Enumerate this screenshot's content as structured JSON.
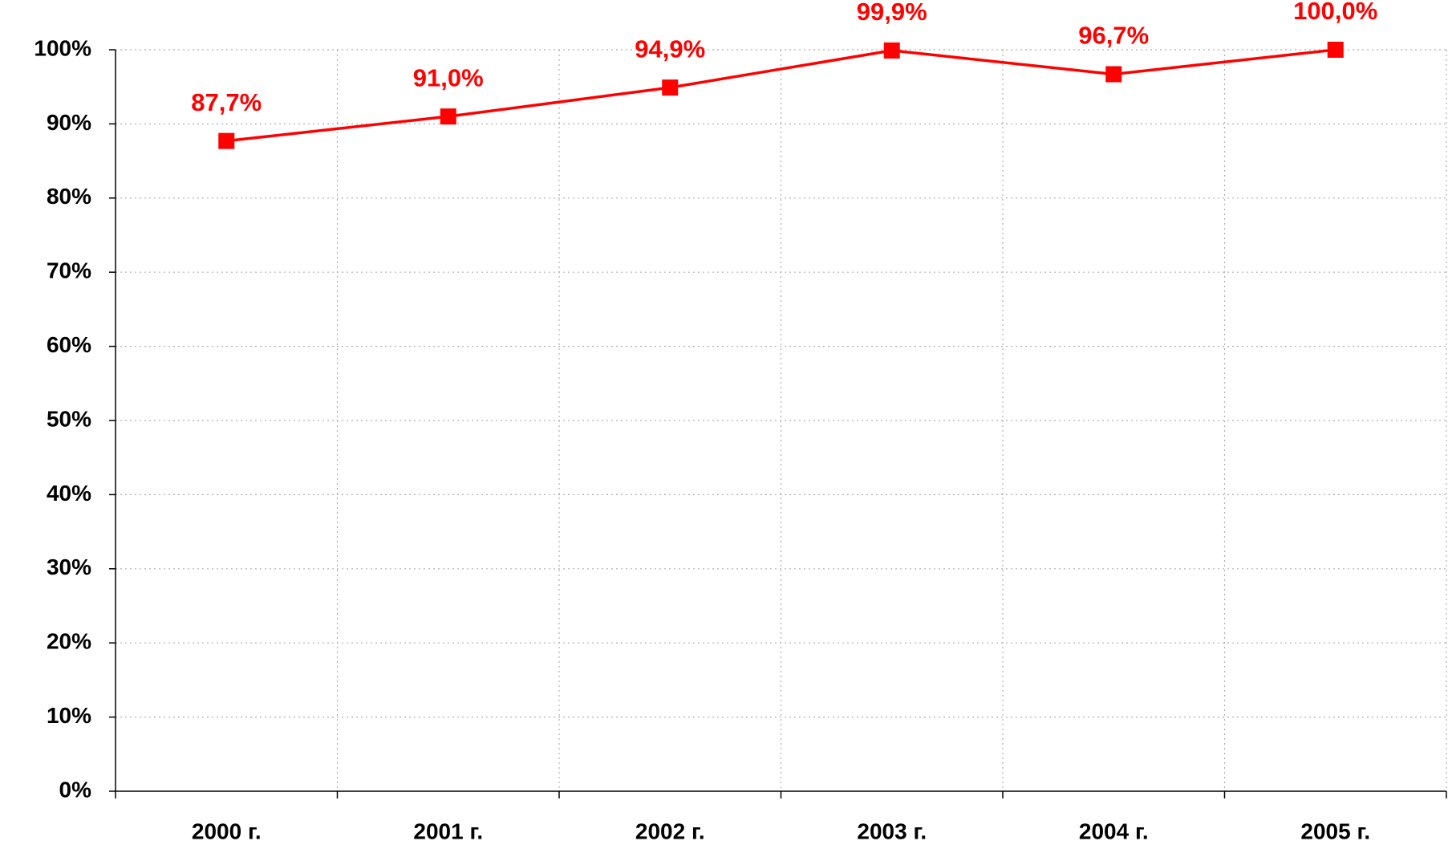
{
  "chart_data": {
    "type": "line",
    "categories": [
      "2000 г.",
      "2001 г.",
      "2002 г.",
      "2003 г.",
      "2004 г.",
      "2005 г."
    ],
    "series": [
      {
        "name": null,
        "color": "#ff0000",
        "values": [
          87.7,
          91.0,
          94.9,
          99.9,
          96.7,
          100.0
        ],
        "value_labels": [
          "87,7%",
          "91,0%",
          "94,9%",
          "99,9%",
          "96,7%",
          "100,0%"
        ]
      }
    ],
    "ylim": [
      0,
      100
    ],
    "yticks": [
      {
        "value": 0,
        "label": "0%"
      },
      {
        "value": 10,
        "label": "10%"
      },
      {
        "value": 20,
        "label": "20%"
      },
      {
        "value": 30,
        "label": "30%"
      },
      {
        "value": 40,
        "label": "40%"
      },
      {
        "value": 50,
        "label": "50%"
      },
      {
        "value": 60,
        "label": "60%"
      },
      {
        "value": 70,
        "label": "70%"
      },
      {
        "value": 80,
        "label": "80%"
      },
      {
        "value": 90,
        "label": "90%"
      },
      {
        "value": 100,
        "label": "100%"
      }
    ],
    "grid": true
  }
}
